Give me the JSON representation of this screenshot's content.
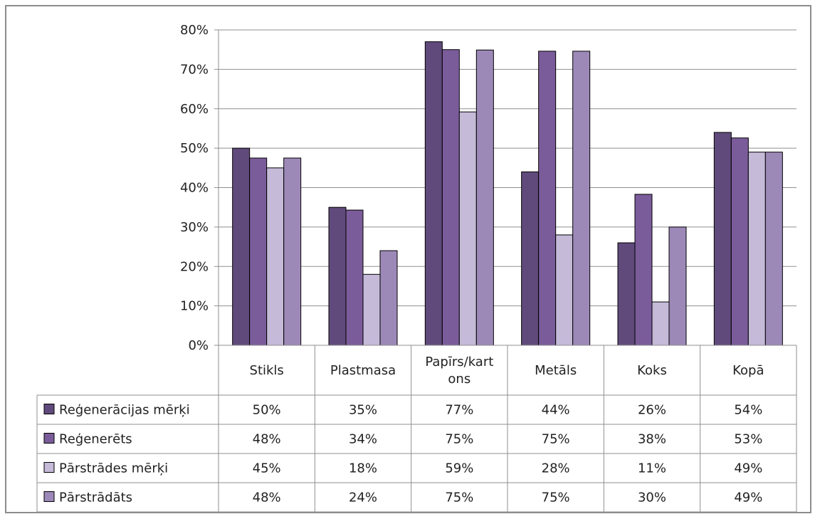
{
  "chart_data": {
    "type": "bar",
    "categories": [
      "Stikls",
      "Plastmasa",
      "Papīrs/kartons",
      "Metāls",
      "Koks",
      "Kopā"
    ],
    "category_lines": [
      [
        "Stikls"
      ],
      [
        "Plastmasa"
      ],
      [
        "Papīrs/kart",
        "ons"
      ],
      [
        "Metāls"
      ],
      [
        "Koks"
      ],
      [
        "Kopā"
      ]
    ],
    "y_ticks": [
      "0%",
      "10%",
      "20%",
      "30%",
      "40%",
      "50%",
      "60%",
      "70%",
      "80%"
    ],
    "ylim": [
      0,
      80
    ],
    "grid": true,
    "legend": "data-table-left",
    "series": [
      {
        "name": "Reģenerācijas mērķi",
        "values": [
          50,
          35,
          77,
          44,
          26,
          54
        ],
        "labels": [
          "50%",
          "35%",
          "77%",
          "44%",
          "26%",
          "54%"
        ],
        "color": "#604a7b"
      },
      {
        "name": "Reģenerēts",
        "values": [
          47.5,
          34.3,
          75,
          74.6,
          38.3,
          52.6
        ],
        "labels": [
          "48%",
          "34%",
          "75%",
          "75%",
          "38%",
          "53%"
        ],
        "color": "#7b5c9a"
      },
      {
        "name": "Pārstrādes mērķi",
        "values": [
          45,
          18,
          59.2,
          28,
          11,
          49
        ],
        "labels": [
          "45%",
          "18%",
          "59%",
          "28%",
          "11%",
          "49%"
        ],
        "color": "#c5bad8"
      },
      {
        "name": "Pārstrādāts",
        "values": [
          47.5,
          24,
          74.9,
          74.6,
          30,
          49
        ],
        "labels": [
          "48%",
          "24%",
          "75%",
          "75%",
          "30%",
          "49%"
        ],
        "color": "#9d89b8"
      }
    ]
  }
}
